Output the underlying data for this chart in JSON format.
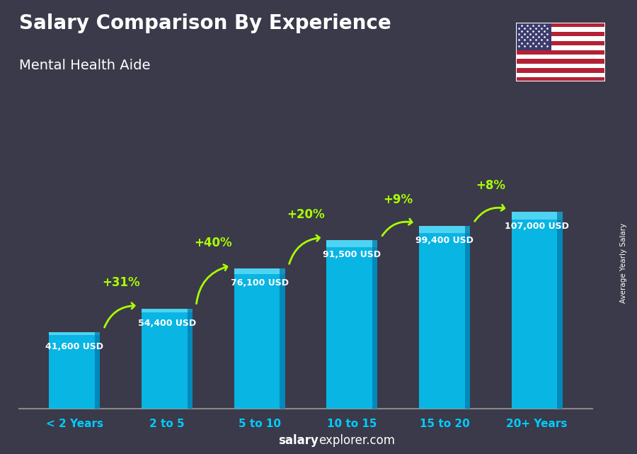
{
  "title": "Salary Comparison By Experience",
  "subtitle": "Mental Health Aide",
  "categories": [
    "< 2 Years",
    "2 to 5",
    "5 to 10",
    "10 to 15",
    "15 to 20",
    "20+ Years"
  ],
  "values": [
    41600,
    54400,
    76100,
    91500,
    99400,
    107000
  ],
  "labels": [
    "41,600 USD",
    "54,400 USD",
    "76,100 USD",
    "91,500 USD",
    "99,400 USD",
    "107,000 USD"
  ],
  "pct_changes": [
    "+31%",
    "+40%",
    "+20%",
    "+9%",
    "+8%"
  ],
  "bar_color": "#00CCFF",
  "bar_highlight": "#88EEFF",
  "bar_shadow": "#0077AA",
  "bg_color": "#3a3a4a",
  "pct_color": "#AAFF00",
  "watermark_bold": "salary",
  "watermark_normal": "explorer.com",
  "side_label": "Average Yearly Salary",
  "figwidth": 9.0,
  "figheight": 6.41
}
